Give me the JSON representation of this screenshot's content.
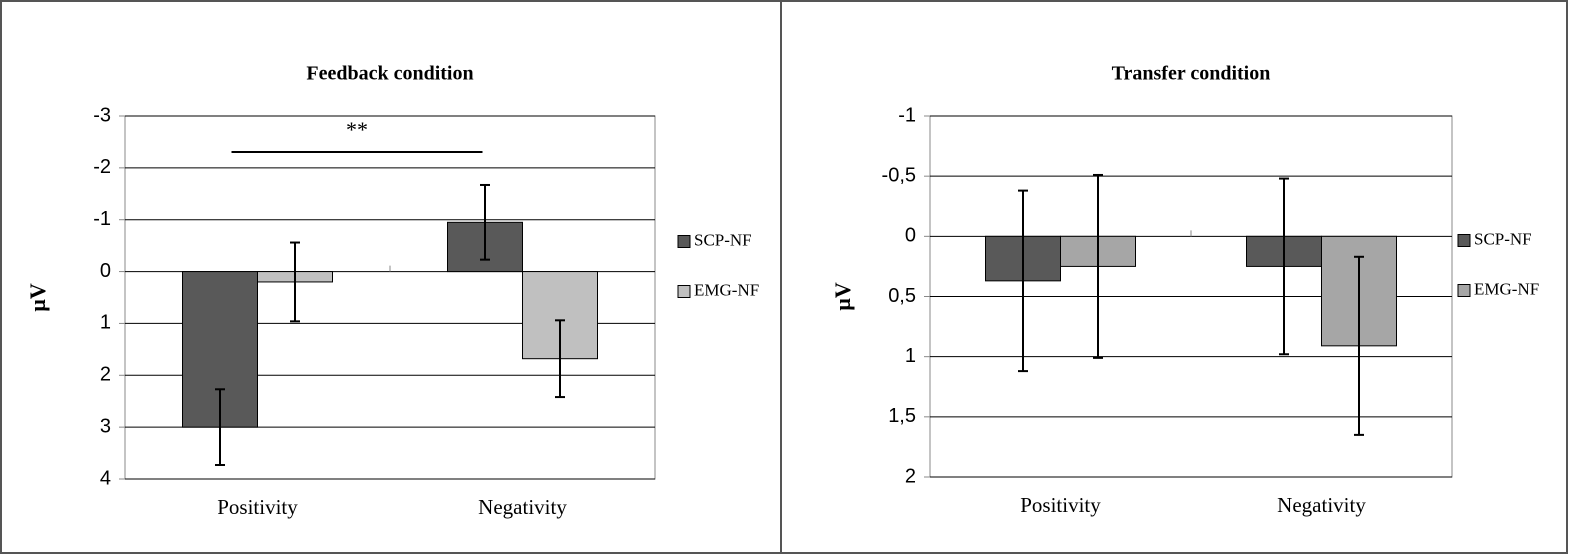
{
  "chart_data": [
    {
      "type": "bar",
      "title": "Feedback condition",
      "y_label": "µV",
      "categories": [
        "Positivity",
        "Negativity"
      ],
      "series": [
        {
          "name": "SCP-NF",
          "color": "#595959",
          "values": [
            3.0,
            -0.95
          ],
          "errors": [
            0.73,
            0.72
          ]
        },
        {
          "name": "EMG-NF",
          "color": "#c0c0c0",
          "values": [
            0.2,
            1.68
          ],
          "errors": [
            0.76,
            0.74
          ]
        }
      ],
      "ylim": [
        -3,
        4
      ],
      "y_inverted": true,
      "yticks": [
        -3,
        -2,
        -1,
        0,
        1,
        2,
        3,
        4
      ],
      "grid": true,
      "annotations": [
        "**"
      ]
    },
    {
      "type": "bar",
      "title": "Transfer  condition",
      "y_label": "µV",
      "categories": [
        "Positivity",
        "Negativity"
      ],
      "series": [
        {
          "name": "SCP-NF",
          "color": "#595959",
          "values": [
            0.37,
            0.25
          ],
          "errors": [
            0.75,
            0.73
          ]
        },
        {
          "name": "EMG-NF",
          "color": "#a6a6a6",
          "values": [
            0.25,
            0.91
          ],
          "errors": [
            0.76,
            0.74
          ]
        }
      ],
      "ylim": [
        -1,
        2
      ],
      "y_inverted": true,
      "yticks": [
        -1,
        {
          "value": -0.5,
          "label": "-0,5"
        },
        0,
        {
          "value": 0.5,
          "label": "0,5"
        },
        1,
        {
          "value": 1.5,
          "label": "1,5"
        },
        2
      ],
      "grid": true
    }
  ]
}
